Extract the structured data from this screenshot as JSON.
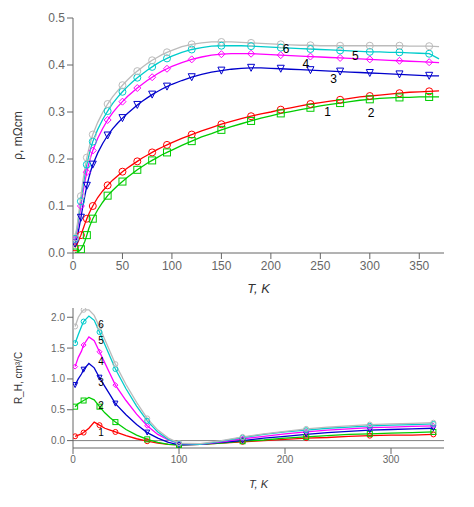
{
  "chart_data": [
    {
      "type": "line",
      "x_label": "T, K",
      "y_label": "ρ, mΩcm",
      "x": [
        2,
        4,
        6,
        8,
        10,
        12,
        14,
        16,
        18,
        20,
        25,
        30,
        35,
        40,
        45,
        50,
        55,
        60,
        65,
        70,
        75,
        80,
        85,
        90,
        95,
        100,
        110,
        120,
        130,
        140,
        150,
        160,
        170,
        180,
        190,
        200,
        210,
        220,
        230,
        240,
        250,
        260,
        270,
        280,
        290,
        300,
        310,
        320,
        330,
        340,
        350,
        360,
        370
      ],
      "xlim": [
        0,
        375
      ],
      "xticks": [
        0,
        50,
        100,
        150,
        200,
        250,
        300,
        350
      ],
      "ylim": [
        0,
        0.5
      ],
      "yticks": [
        {
          "value": 0,
          "label": "0.0"
        },
        0.1,
        0.2,
        0.3,
        0.4,
        0.5
      ],
      "grid": false,
      "series": [
        {
          "color": "#ff0000",
          "marker": "circle",
          "values": [
            0.012,
            0.018,
            0.028,
            0.038,
            0.05,
            0.062,
            0.073,
            0.083,
            0.092,
            0.1,
            0.118,
            0.132,
            0.144,
            0.155,
            0.164,
            0.173,
            0.181,
            0.188,
            0.195,
            0.202,
            0.208,
            0.214,
            0.22,
            0.225,
            0.23,
            0.235,
            0.244,
            0.252,
            0.26,
            0.267,
            0.274,
            0.28,
            0.286,
            0.291,
            0.296,
            0.3,
            0.305,
            0.309,
            0.313,
            0.317,
            0.32,
            0.323,
            0.326,
            0.329,
            0.332,
            0.334,
            0.336,
            0.338,
            0.34,
            0.342,
            0.343,
            0.344,
            0.345
          ]
        },
        {
          "color": "#00cc00",
          "marker": "square",
          "values": [
            0.001,
            0.002,
            0.004,
            0.008,
            0.015,
            0.025,
            0.038,
            0.052,
            0.063,
            0.073,
            0.092,
            0.108,
            0.122,
            0.133,
            0.143,
            0.152,
            0.161,
            0.169,
            0.177,
            0.184,
            0.191,
            0.197,
            0.203,
            0.209,
            0.214,
            0.219,
            0.229,
            0.238,
            0.247,
            0.254,
            0.262,
            0.269,
            0.275,
            0.281,
            0.287,
            0.292,
            0.297,
            0.301,
            0.305,
            0.309,
            0.313,
            0.316,
            0.319,
            0.322,
            0.325,
            0.327,
            0.329,
            0.33,
            0.331,
            0.331,
            0.332,
            0.332,
            0.332
          ]
        },
        {
          "color": "#0000cc",
          "marker": "triangle-down",
          "values": [
            0.02,
            0.032,
            0.052,
            0.075,
            0.1,
            0.122,
            0.143,
            0.16,
            0.175,
            0.188,
            0.213,
            0.233,
            0.25,
            0.264,
            0.276,
            0.287,
            0.297,
            0.306,
            0.315,
            0.323,
            0.33,
            0.337,
            0.343,
            0.349,
            0.354,
            0.359,
            0.367,
            0.374,
            0.38,
            0.385,
            0.388,
            0.391,
            0.393,
            0.394,
            0.394,
            0.393,
            0.392,
            0.391,
            0.39,
            0.389,
            0.388,
            0.387,
            0.386,
            0.385,
            0.384,
            0.383,
            0.382,
            0.381,
            0.38,
            0.379,
            0.378,
            0.377,
            0.377
          ]
        },
        {
          "color": "#ff00ff",
          "marker": "diamond",
          "values": [
            0.028,
            0.045,
            0.072,
            0.1,
            0.128,
            0.152,
            0.172,
            0.19,
            0.205,
            0.218,
            0.244,
            0.265,
            0.283,
            0.298,
            0.311,
            0.322,
            0.333,
            0.342,
            0.351,
            0.359,
            0.367,
            0.374,
            0.381,
            0.387,
            0.392,
            0.397,
            0.405,
            0.412,
            0.417,
            0.421,
            0.423,
            0.424,
            0.424,
            0.424,
            0.423,
            0.422,
            0.421,
            0.42,
            0.419,
            0.418,
            0.417,
            0.416,
            0.415,
            0.414,
            0.413,
            0.412,
            0.411,
            0.41,
            0.409,
            0.408,
            0.407,
            0.406,
            0.405
          ]
        },
        {
          "color": "#00cccc",
          "marker": "circle",
          "values": [
            0.03,
            0.05,
            0.08,
            0.11,
            0.14,
            0.166,
            0.188,
            0.207,
            0.223,
            0.237,
            0.263,
            0.284,
            0.302,
            0.318,
            0.331,
            0.343,
            0.354,
            0.364,
            0.373,
            0.381,
            0.389,
            0.396,
            0.403,
            0.409,
            0.414,
            0.419,
            0.427,
            0.433,
            0.437,
            0.44,
            0.441,
            0.441,
            0.441,
            0.44,
            0.439,
            0.438,
            0.437,
            0.436,
            0.435,
            0.434,
            0.433,
            0.432,
            0.431,
            0.43,
            0.429,
            0.428,
            0.428,
            0.427,
            0.427,
            0.426,
            0.425,
            0.424,
            0.413
          ]
        },
        {
          "color": "#bbbbbb",
          "marker": "circle",
          "values": [
            0.033,
            0.055,
            0.088,
            0.121,
            0.153,
            0.18,
            0.203,
            0.222,
            0.238,
            0.252,
            0.278,
            0.299,
            0.317,
            0.332,
            0.345,
            0.357,
            0.368,
            0.378,
            0.387,
            0.395,
            0.403,
            0.41,
            0.416,
            0.422,
            0.427,
            0.431,
            0.439,
            0.444,
            0.447,
            0.449,
            0.449,
            0.449,
            0.448,
            0.447,
            0.446,
            0.445,
            0.444,
            0.443,
            0.442,
            0.442,
            0.441,
            0.441,
            0.441,
            0.441,
            0.441,
            0.441,
            0.441,
            0.441,
            0.441,
            0.44,
            0.44,
            0.44,
            0.439
          ]
        }
      ],
      "annotations": [
        {
          "x": 252,
          "y": 0.301,
          "text": "1"
        },
        {
          "x": 296,
          "y": 0.299,
          "text": "2"
        },
        {
          "x": 258,
          "y": 0.37,
          "text": "3"
        },
        {
          "x": 230,
          "y": 0.403,
          "text": "4"
        },
        {
          "x": 280,
          "y": 0.42,
          "text": "5"
        },
        {
          "x": 210,
          "y": 0.435,
          "text": "6"
        }
      ]
    },
    {
      "type": "line",
      "x_label": "T, K",
      "y_label": "R_H, cm³/C",
      "x": [
        2,
        5,
        8,
        10,
        15,
        20,
        25,
        30,
        35,
        40,
        50,
        60,
        70,
        80,
        90,
        100,
        120,
        140,
        160,
        180,
        200,
        220,
        240,
        260,
        280,
        300,
        320,
        340
      ],
      "xlim": [
        0,
        350
      ],
      "xticks": [
        0,
        100,
        200,
        300
      ],
      "ylim": [
        -0.12,
        2.15
      ],
      "yticks": [
        {
          "value": 0,
          "label": "0.0"
        },
        0.5,
        {
          "value": 1,
          "label": "1.0"
        },
        1.5,
        {
          "value": 2,
          "label": "2.0"
        }
      ],
      "grid": false,
      "hlines": [
        {
          "y": 0,
          "color": "gray"
        }
      ],
      "series": [
        {
          "color": "#ff0000",
          "marker": "circle",
          "values": [
            0.07,
            0.09,
            0.11,
            0.13,
            0.2,
            0.3,
            0.25,
            0.2,
            0.17,
            0.14,
            0.08,
            0.03,
            -0.01,
            -0.04,
            -0.06,
            -0.07,
            -0.06,
            -0.04,
            -0.02,
            0.0,
            0.02,
            0.04,
            0.05,
            0.07,
            0.08,
            0.09,
            0.09,
            0.1
          ]
        },
        {
          "color": "#00cc00",
          "marker": "square",
          "values": [
            0.55,
            0.6,
            0.63,
            0.65,
            0.7,
            0.66,
            0.55,
            0.45,
            0.37,
            0.3,
            0.18,
            0.09,
            0.02,
            -0.03,
            -0.06,
            -0.07,
            -0.06,
            -0.04,
            -0.01,
            0.01,
            0.04,
            0.06,
            0.08,
            0.1,
            0.11,
            0.12,
            0.13,
            0.14
          ]
        },
        {
          "color": "#0000cc",
          "marker": "triangle-down",
          "values": [
            0.9,
            1.0,
            1.08,
            1.15,
            1.25,
            1.18,
            1.02,
            0.88,
            0.74,
            0.6,
            0.42,
            0.26,
            0.13,
            0.04,
            -0.03,
            -0.07,
            -0.06,
            -0.03,
            0.0,
            0.04,
            0.07,
            0.1,
            0.13,
            0.15,
            0.17,
            0.18,
            0.19,
            0.2
          ]
        },
        {
          "color": "#ff00ff",
          "marker": "diamond",
          "values": [
            1.2,
            1.35,
            1.45,
            1.55,
            1.68,
            1.62,
            1.44,
            1.26,
            1.08,
            0.9,
            0.65,
            0.43,
            0.24,
            0.1,
            0.01,
            -0.05,
            -0.06,
            -0.02,
            0.03,
            0.07,
            0.11,
            0.14,
            0.17,
            0.19,
            0.21,
            0.22,
            0.23,
            0.24
          ]
        },
        {
          "color": "#00cccc",
          "marker": "circle",
          "values": [
            1.58,
            1.72,
            1.85,
            1.93,
            2.02,
            1.95,
            1.76,
            1.56,
            1.36,
            1.16,
            0.84,
            0.56,
            0.32,
            0.14,
            0.02,
            -0.05,
            -0.06,
            -0.01,
            0.05,
            0.1,
            0.14,
            0.17,
            0.2,
            0.22,
            0.24,
            0.25,
            0.26,
            0.27
          ]
        },
        {
          "color": "#bbbbbb",
          "marker": "circle",
          "values": [
            1.85,
            2.0,
            2.08,
            2.12,
            2.12,
            2.03,
            1.84,
            1.64,
            1.44,
            1.24,
            0.91,
            0.62,
            0.36,
            0.17,
            0.04,
            -0.04,
            -0.05,
            0.0,
            0.06,
            0.11,
            0.15,
            0.19,
            0.22,
            0.24,
            0.26,
            0.27,
            0.28,
            0.29
          ]
        }
      ],
      "annotations": [
        {
          "x": 22,
          "y": 0.13,
          "text": "1"
        },
        {
          "x": 22,
          "y": 0.57,
          "text": "2"
        },
        {
          "x": 22,
          "y": 0.95,
          "text": "3"
        },
        {
          "x": 22,
          "y": 1.28,
          "text": "4"
        },
        {
          "x": 22,
          "y": 1.62,
          "text": "5"
        },
        {
          "x": 22,
          "y": 1.88,
          "text": "6"
        }
      ]
    }
  ]
}
